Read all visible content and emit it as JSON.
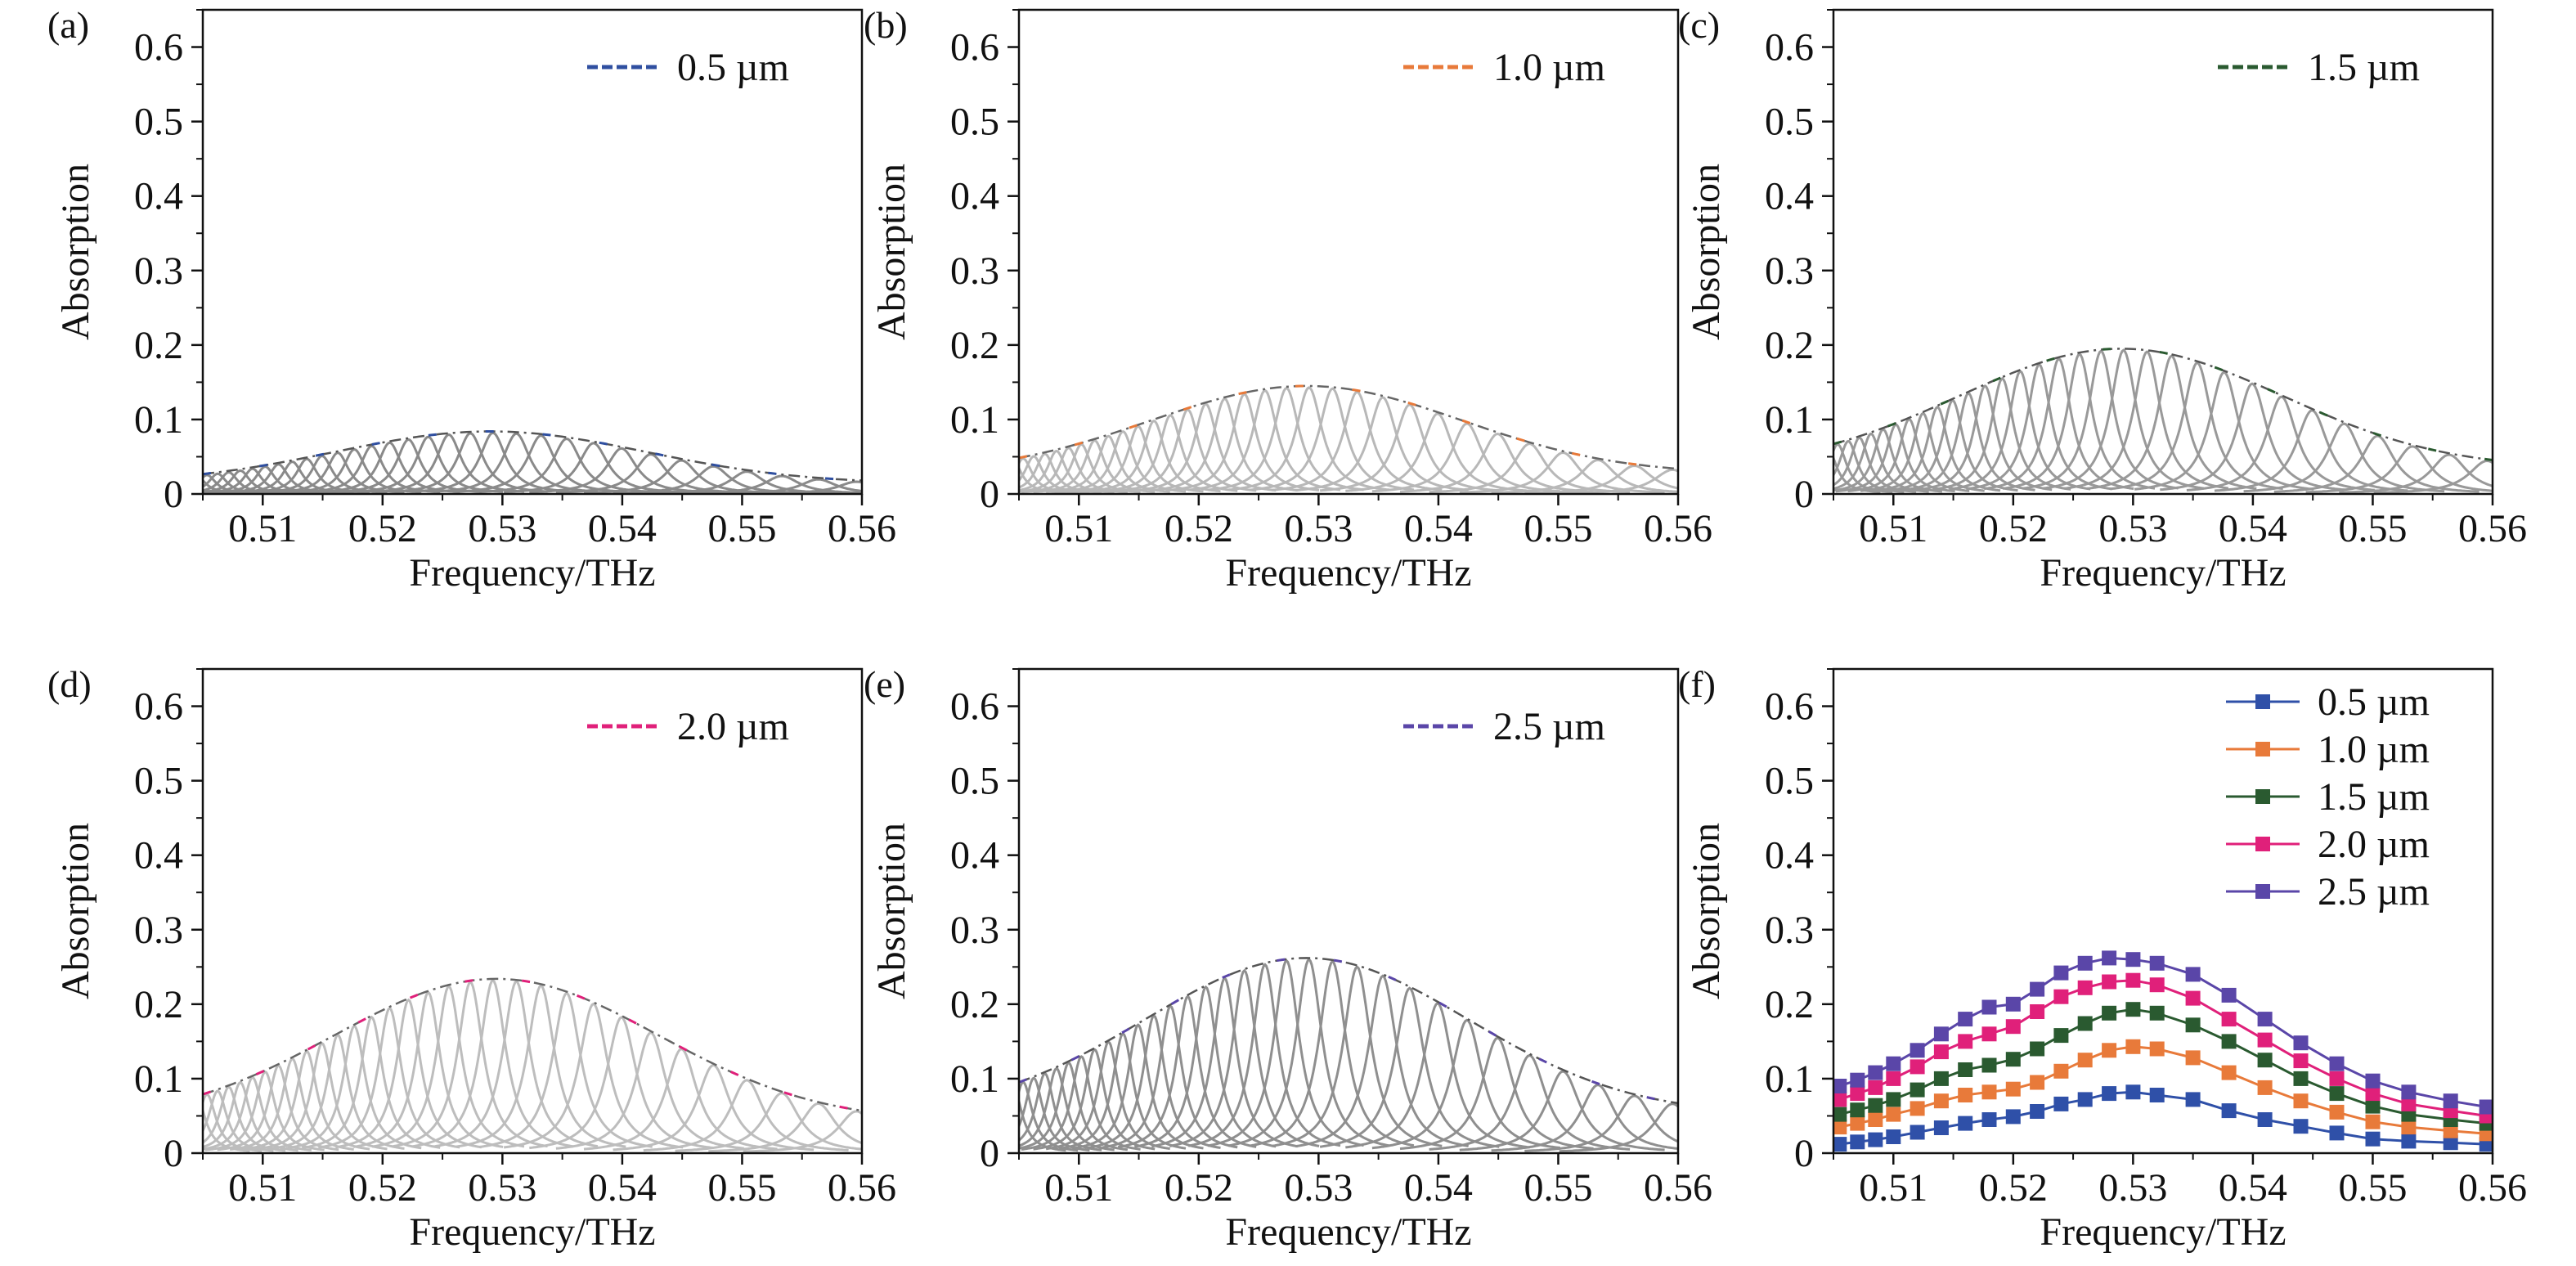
{
  "chart_data": [
    {
      "id": "a",
      "panel_label": "(a)",
      "type": "line",
      "title": "",
      "xlabel": "Frequency/THz",
      "ylabel": "Absorption",
      "xlim": [
        0.505,
        0.56
      ],
      "ylim": [
        0,
        0.65
      ],
      "xticks": [
        "0.51",
        "0.52",
        "0.53",
        "0.54",
        "0.55",
        "0.56"
      ],
      "yticks": [
        "0",
        "0.1",
        "0.2",
        "0.3",
        "0.4",
        "0.5",
        "0.6"
      ],
      "legend": {
        "label": "0.5 µm",
        "color": "#2f4fa0",
        "style": "dashed"
      },
      "peak_center": 0.529,
      "peak_width": 0.013,
      "peak_height": 0.082,
      "base_height": 0.012,
      "resonances_color": "#8a8a8a",
      "envelope_color": "#555555"
    },
    {
      "id": "b",
      "panel_label": "(b)",
      "type": "line",
      "title": "",
      "xlabel": "Frequency/THz",
      "ylabel": "Absorption",
      "xlim": [
        0.505,
        0.56
      ],
      "ylim": [
        0,
        0.65
      ],
      "xticks": [
        "0.51",
        "0.52",
        "0.53",
        "0.54",
        "0.55",
        "0.56"
      ],
      "yticks": [
        "0",
        "0.1",
        "0.2",
        "0.3",
        "0.4",
        "0.5",
        "0.6"
      ],
      "legend": {
        "label": "1.0 µm",
        "color": "#e87a3a",
        "style": "dashed"
      },
      "peak_center": 0.529,
      "peak_width": 0.013,
      "peak_height": 0.143,
      "base_height": 0.025,
      "resonances_color": "#b8b8b8",
      "envelope_color": "#666666"
    },
    {
      "id": "c",
      "panel_label": "(c)",
      "type": "line",
      "title": "",
      "xlabel": "Frequency/THz",
      "ylabel": "Absorption",
      "xlim": [
        0.505,
        0.56
      ],
      "ylim": [
        0,
        0.65
      ],
      "xticks": [
        "0.51",
        "0.52",
        "0.53",
        "0.54",
        "0.55",
        "0.56"
      ],
      "yticks": [
        "0",
        "0.1",
        "0.2",
        "0.3",
        "0.4",
        "0.5",
        "0.6"
      ],
      "legend": {
        "label": "1.5 µm",
        "color": "#2a5a30",
        "style": "dashed"
      },
      "peak_center": 0.529,
      "peak_width": 0.0135,
      "peak_height": 0.193,
      "base_height": 0.032,
      "resonances_color": "#999999",
      "envelope_color": "#555555"
    },
    {
      "id": "d",
      "panel_label": "(d)",
      "type": "line",
      "title": "",
      "xlabel": "Frequency/THz",
      "ylabel": "Absorption",
      "xlim": [
        0.505,
        0.56
      ],
      "ylim": [
        0,
        0.65
      ],
      "xticks": [
        "0.51",
        "0.52",
        "0.53",
        "0.54",
        "0.55",
        "0.56"
      ],
      "yticks": [
        "0",
        "0.1",
        "0.2",
        "0.3",
        "0.4",
        "0.5",
        "0.6"
      ],
      "legend": {
        "label": "2.0 µm",
        "color": "#e0207a",
        "style": "dashed"
      },
      "peak_center": 0.5295,
      "peak_width": 0.0135,
      "peak_height": 0.232,
      "base_height": 0.04,
      "resonances_color": "#bdbdbd",
      "envelope_color": "#666666"
    },
    {
      "id": "e",
      "panel_label": "(e)",
      "type": "line",
      "title": "",
      "xlabel": "Frequency/THz",
      "ylabel": "Absorption",
      "xlim": [
        0.505,
        0.56
      ],
      "ylim": [
        0,
        0.65
      ],
      "xticks": [
        "0.51",
        "0.52",
        "0.53",
        "0.54",
        "0.55",
        "0.56"
      ],
      "yticks": [
        "0",
        "0.1",
        "0.2",
        "0.3",
        "0.4",
        "0.5",
        "0.6"
      ],
      "legend": {
        "label": "2.5 µm",
        "color": "#5a46a8",
        "style": "dashed"
      },
      "peak_center": 0.529,
      "peak_width": 0.0135,
      "peak_height": 0.26,
      "base_height": 0.05,
      "resonances_color": "#8f8f8f",
      "envelope_color": "#555555"
    },
    {
      "id": "f",
      "panel_label": "(f)",
      "type": "line",
      "title": "",
      "xlabel": "Frequency/THz",
      "ylabel": "Absorption",
      "xlim": [
        0.505,
        0.56
      ],
      "ylim": [
        0,
        0.65
      ],
      "xticks": [
        "0.51",
        "0.52",
        "0.53",
        "0.54",
        "0.55",
        "0.56"
      ],
      "yticks": [
        "0",
        "0.1",
        "0.2",
        "0.3",
        "0.4",
        "0.5",
        "0.6"
      ],
      "x": [
        0.5055,
        0.507,
        0.5085,
        0.51,
        0.512,
        0.514,
        0.516,
        0.518,
        0.52,
        0.522,
        0.524,
        0.526,
        0.528,
        0.53,
        0.532,
        0.535,
        0.538,
        0.541,
        0.544,
        0.547,
        0.55,
        0.553,
        0.5565,
        0.5595
      ],
      "series": [
        {
          "name": "0.5 µm",
          "color": "#2f50a8",
          "values": [
            0.012,
            0.015,
            0.018,
            0.022,
            0.028,
            0.034,
            0.04,
            0.045,
            0.049,
            0.056,
            0.066,
            0.072,
            0.08,
            0.082,
            0.078,
            0.072,
            0.057,
            0.045,
            0.036,
            0.027,
            0.019,
            0.016,
            0.014,
            0.012
          ]
        },
        {
          "name": "1.0 µm",
          "color": "#e87a3a",
          "values": [
            0.035,
            0.04,
            0.045,
            0.052,
            0.06,
            0.07,
            0.078,
            0.082,
            0.086,
            0.095,
            0.11,
            0.125,
            0.138,
            0.143,
            0.14,
            0.128,
            0.108,
            0.088,
            0.07,
            0.055,
            0.042,
            0.035,
            0.03,
            0.026
          ]
        },
        {
          "name": "1.5 µm",
          "color": "#2a5a30",
          "values": [
            0.052,
            0.058,
            0.064,
            0.072,
            0.085,
            0.1,
            0.112,
            0.118,
            0.126,
            0.14,
            0.158,
            0.174,
            0.188,
            0.193,
            0.188,
            0.172,
            0.15,
            0.125,
            0.1,
            0.08,
            0.063,
            0.052,
            0.045,
            0.04
          ]
        },
        {
          "name": "2.0 µm",
          "color": "#e0207a",
          "values": [
            0.072,
            0.08,
            0.088,
            0.1,
            0.116,
            0.136,
            0.15,
            0.16,
            0.17,
            0.19,
            0.21,
            0.222,
            0.23,
            0.232,
            0.226,
            0.208,
            0.18,
            0.152,
            0.124,
            0.1,
            0.08,
            0.066,
            0.057,
            0.05
          ]
        },
        {
          "name": "2.5 µm",
          "color": "#5a46a8",
          "values": [
            0.09,
            0.098,
            0.108,
            0.12,
            0.138,
            0.16,
            0.18,
            0.196,
            0.2,
            0.22,
            0.242,
            0.255,
            0.262,
            0.26,
            0.255,
            0.24,
            0.212,
            0.18,
            0.148,
            0.12,
            0.097,
            0.082,
            0.07,
            0.062
          ]
        }
      ]
    }
  ]
}
